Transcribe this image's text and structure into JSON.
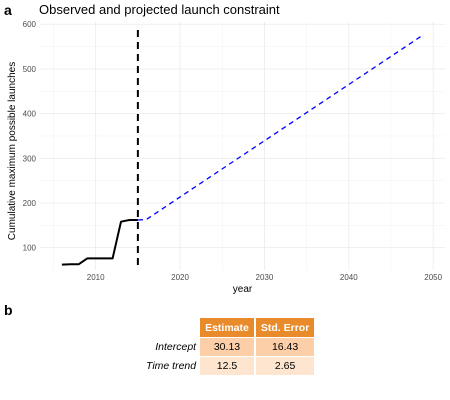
{
  "panel_a_label": "a",
  "panel_b_label": "b",
  "chart_data": {
    "type": "line",
    "title": "Observed and projected launch constraint",
    "xlabel": "year",
    "ylabel": "Cumulative maximum possible launches",
    "xlim": [
      2003.4,
      2051.4
    ],
    "ylim": [
      50,
      605
    ],
    "x_ticks": [
      2010,
      2020,
      2030,
      2040,
      2050
    ],
    "y_ticks": [
      100,
      200,
      300,
      400,
      500,
      600
    ],
    "grid": true,
    "vline": {
      "x": 2015,
      "style": "dashed",
      "color": "#000000"
    },
    "series": [
      {
        "style": "solid",
        "color": "#000000",
        "points": [
          [
            2006,
            62
          ],
          [
            2007,
            63
          ],
          [
            2008,
            63
          ],
          [
            2009,
            76
          ],
          [
            2010,
            76
          ],
          [
            2011,
            76
          ],
          [
            2012,
            76
          ],
          [
            2013,
            158
          ],
          [
            2014,
            162
          ],
          [
            2015,
            162
          ]
        ]
      },
      {
        "style": "dashed",
        "color": "#0000ff",
        "points": [
          [
            2015,
            162
          ],
          [
            2016,
            163
          ],
          [
            2048.5,
            572
          ]
        ]
      }
    ]
  },
  "coef_table": {
    "headers": [
      "Estimate",
      "Std. Error"
    ],
    "rows": [
      {
        "name": "Intercept",
        "estimate": "30.13",
        "std_error": "16.43"
      },
      {
        "name": "Time trend",
        "estimate": "12.5",
        "std_error": "2.65"
      }
    ]
  }
}
